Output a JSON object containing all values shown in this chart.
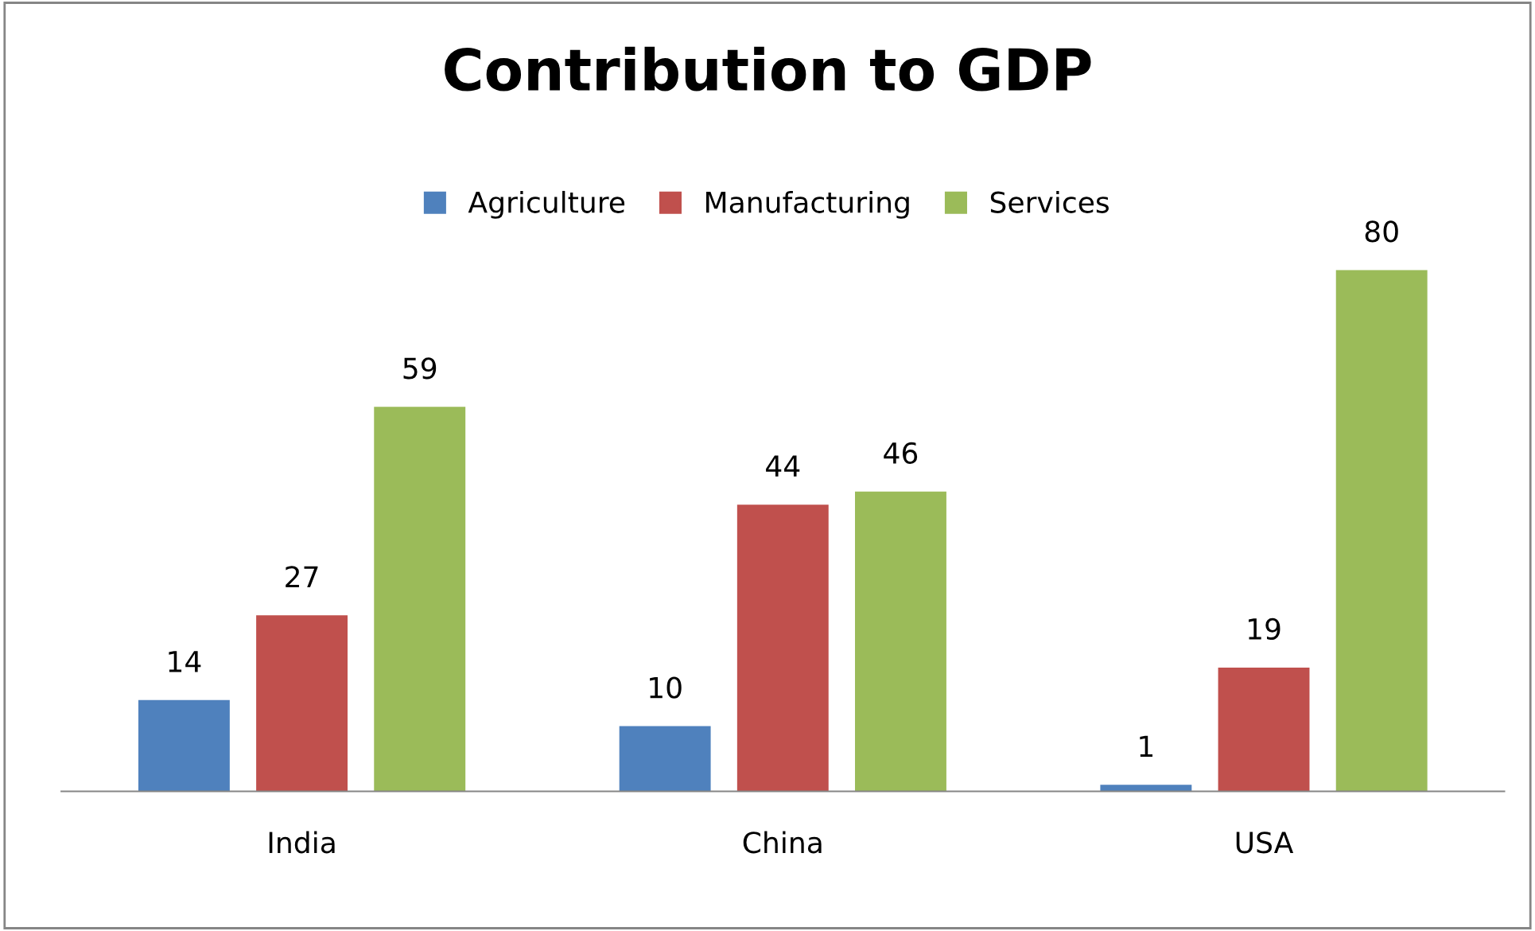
{
  "chart_data": {
    "type": "bar",
    "title": "Contribution to GDP",
    "categories": [
      "India",
      "China",
      "USA"
    ],
    "series": [
      {
        "name": "Agriculture",
        "color": "#4f81bd",
        "values": [
          14,
          10,
          1
        ]
      },
      {
        "name": "Manufacturing",
        "color": "#c0504d",
        "values": [
          27,
          44,
          19
        ]
      },
      {
        "name": "Services",
        "color": "#9bbb59",
        "values": [
          59,
          46,
          80
        ]
      }
    ],
    "data_labels": true,
    "legend": "top",
    "grid": false
  }
}
